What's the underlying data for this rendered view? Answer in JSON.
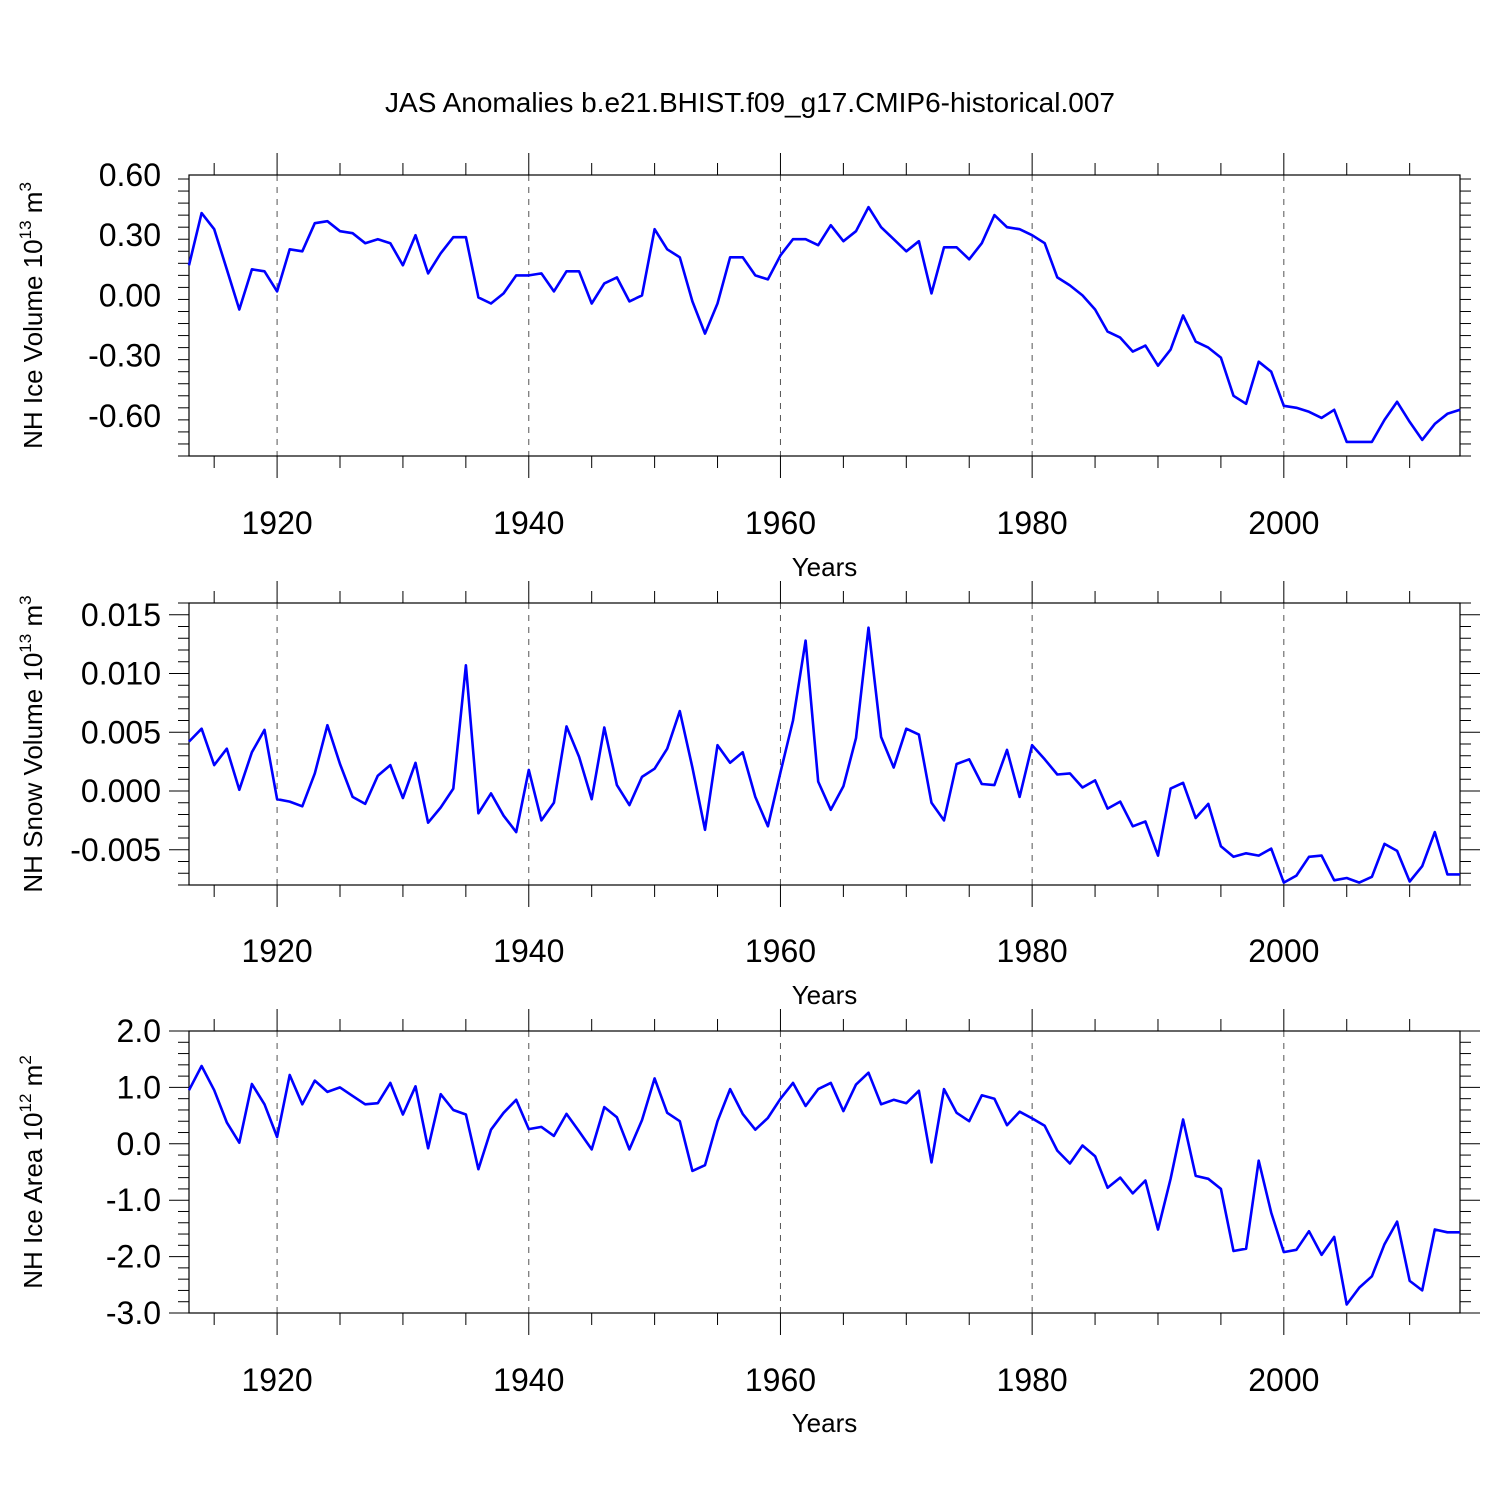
{
  "title": "JAS Anomalies b.e21.BHIST.f09_g17.CMIP6-historical.007",
  "colors": {
    "series": "#0000ff",
    "grid": "#555555"
  },
  "chart_data": [
    {
      "type": "line",
      "ylabel": {
        "base": "NH Ice Volume 10",
        "exp": "13",
        "unit": " m",
        "unit_exp": "3"
      },
      "xlabel": "Years",
      "xlim": [
        1913,
        2014
      ],
      "ylim": [
        -0.8,
        0.6
      ],
      "yticks": [
        0.6,
        0.3,
        0.0,
        -0.3,
        -0.6
      ],
      "ytick_labels": [
        "0.60",
        "0.30",
        "0.00",
        "-0.30",
        "-0.60"
      ],
      "xticks": [
        1920,
        1940,
        1960,
        1980,
        2000
      ],
      "xtick_labels": [
        "1920",
        "1940",
        "1960",
        "1980",
        "2000"
      ],
      "grid": "dashed vertical at major x ticks",
      "series": [
        {
          "x": [
            1913,
            1914,
            1915,
            1916,
            1917,
            1918,
            1919,
            1920,
            1921,
            1922,
            1923,
            1924,
            1925,
            1926,
            1927,
            1928,
            1929,
            1930,
            1931,
            1932,
            1933,
            1934,
            1935,
            1936,
            1937,
            1938,
            1939,
            1940,
            1941,
            1942,
            1943,
            1944,
            1945,
            1946,
            1947,
            1948,
            1949,
            1950,
            1951,
            1952,
            1953,
            1954,
            1955,
            1956,
            1957,
            1958,
            1959,
            1960,
            1961,
            1962,
            1963,
            1964,
            1965,
            1966,
            1967,
            1968,
            1969,
            1970,
            1971,
            1972,
            1973,
            1974,
            1975,
            1976,
            1977,
            1978,
            1979,
            1980,
            1981,
            1982,
            1983,
            1984,
            1985,
            1986,
            1987,
            1988,
            1989,
            1990,
            1991,
            1992,
            1993,
            1994,
            1995,
            1996,
            1997,
            1998,
            1999,
            2000,
            2001,
            2002,
            2003,
            2004,
            2005,
            2006,
            2007,
            2008,
            2009,
            2010,
            2011,
            2012,
            2013,
            2014
          ],
          "values": [
            0.15,
            0.41,
            0.33,
            0.13,
            -0.07,
            0.13,
            0.12,
            0.02,
            0.23,
            0.22,
            0.36,
            0.37,
            0.32,
            0.31,
            0.26,
            0.28,
            0.26,
            0.15,
            0.3,
            0.11,
            0.21,
            0.29,
            0.29,
            -0.01,
            -0.04,
            0.01,
            0.1,
            0.1,
            0.11,
            0.02,
            0.12,
            0.12,
            -0.04,
            0.06,
            0.09,
            -0.03,
            0.0,
            0.33,
            0.23,
            0.19,
            -0.03,
            -0.19,
            -0.04,
            0.19,
            0.19,
            0.1,
            0.08,
            0.2,
            0.28,
            0.28,
            0.25,
            0.35,
            0.27,
            0.32,
            0.44,
            0.34,
            0.28,
            0.22,
            0.27,
            0.01,
            0.24,
            0.24,
            0.18,
            0.26,
            0.4,
            0.34,
            0.33,
            0.3,
            0.26,
            0.09,
            0.05,
            0.0,
            -0.07,
            -0.18,
            -0.21,
            -0.28,
            -0.25,
            -0.35,
            -0.27,
            -0.1,
            -0.23,
            -0.26,
            -0.31,
            -0.5,
            -0.54,
            -0.33,
            -0.38,
            -0.55,
            -0.56,
            -0.58,
            -0.61,
            -0.57,
            -0.73,
            -0.73,
            -0.73,
            -0.62,
            -0.53,
            -0.63,
            -0.72,
            -0.64,
            -0.59,
            -0.57
          ]
        }
      ]
    },
    {
      "type": "line",
      "ylabel": {
        "base": "NH Snow Volume 10",
        "exp": "13",
        "unit": " m",
        "unit_exp": "3"
      },
      "xlabel": "Years",
      "xlim": [
        1913,
        2014
      ],
      "ylim": [
        -0.008,
        0.016
      ],
      "yticks": [
        0.015,
        0.01,
        0.005,
        0.0,
        -0.005
      ],
      "ytick_labels": [
        "0.015",
        "0.010",
        "0.005",
        "0.000",
        "-0.005"
      ],
      "xticks": [
        1920,
        1940,
        1960,
        1980,
        2000
      ],
      "xtick_labels": [
        "1920",
        "1940",
        "1960",
        "1980",
        "2000"
      ],
      "grid": "dashed vertical at major x ticks",
      "series": [
        {
          "x": [
            1913,
            1914,
            1915,
            1916,
            1917,
            1918,
            1919,
            1920,
            1921,
            1922,
            1923,
            1924,
            1925,
            1926,
            1927,
            1928,
            1929,
            1930,
            1931,
            1932,
            1933,
            1934,
            1935,
            1936,
            1937,
            1938,
            1939,
            1940,
            1941,
            1942,
            1943,
            1944,
            1945,
            1946,
            1947,
            1948,
            1949,
            1950,
            1951,
            1952,
            1953,
            1954,
            1955,
            1956,
            1957,
            1958,
            1959,
            1960,
            1961,
            1962,
            1963,
            1964,
            1965,
            1966,
            1967,
            1968,
            1969,
            1970,
            1971,
            1972,
            1973,
            1974,
            1975,
            1976,
            1977,
            1978,
            1979,
            1980,
            1981,
            1982,
            1983,
            1984,
            1985,
            1986,
            1987,
            1988,
            1989,
            1990,
            1991,
            1992,
            1993,
            1994,
            1995,
            1996,
            1997,
            1998,
            1999,
            2000,
            2001,
            2002,
            2003,
            2004,
            2005,
            2006,
            2007,
            2008,
            2009,
            2010,
            2011,
            2012,
            2013,
            2014
          ],
          "values": [
            0.0042,
            0.0053,
            0.0022,
            0.0036,
            0.0001,
            0.0033,
            0.0052,
            -0.0007,
            -0.0009,
            -0.0013,
            0.0015,
            0.0056,
            0.0023,
            -0.0005,
            -0.0011,
            0.0013,
            0.0022,
            -0.0006,
            0.0024,
            -0.0027,
            -0.0014,
            0.0002,
            0.0107,
            -0.0019,
            -0.0002,
            -0.0021,
            -0.0035,
            0.0018,
            -0.0025,
            -0.001,
            0.0055,
            0.0029,
            -0.0007,
            0.0054,
            0.0005,
            -0.0012,
            0.0012,
            0.0019,
            0.0036,
            0.0068,
            0.002,
            -0.0033,
            0.0039,
            0.0024,
            0.0033,
            -0.0005,
            -0.003,
            0.0016,
            0.006,
            0.0128,
            0.0008,
            -0.0016,
            0.0004,
            0.0045,
            0.0139,
            0.0046,
            0.002,
            0.0053,
            0.0048,
            -0.001,
            -0.0025,
            0.0023,
            0.0027,
            0.0006,
            0.0005,
            0.0035,
            -0.0005,
            0.0039,
            0.0027,
            0.0014,
            0.0015,
            0.0003,
            0.0009,
            -0.0015,
            -0.0009,
            -0.003,
            -0.0026,
            -0.0055,
            0.0002,
            0.0007,
            -0.0023,
            -0.0011,
            -0.0047,
            -0.0056,
            -0.0053,
            -0.0055,
            -0.0049,
            -0.0078,
            -0.0072,
            -0.0056,
            -0.0055,
            -0.0076,
            -0.0074,
            -0.0078,
            -0.0073,
            -0.0045,
            -0.0051,
            -0.0077,
            -0.0064,
            -0.0035,
            -0.0071,
            -0.0071
          ]
        }
      ]
    },
    {
      "type": "line",
      "ylabel": {
        "base": "NH Ice Area 10",
        "exp": "12",
        "unit": " m",
        "unit_exp": "2"
      },
      "xlabel": "Years",
      "xlim": [
        1913,
        2014
      ],
      "ylim": [
        -3.0,
        2.0
      ],
      "yticks": [
        2.0,
        1.0,
        0.0,
        -1.0,
        -2.0,
        -3.0
      ],
      "ytick_labels": [
        "2.0",
        "1.0",
        "0.0",
        "-1.0",
        "-2.0",
        "-3.0"
      ],
      "xticks": [
        1920,
        1940,
        1960,
        1980,
        2000
      ],
      "xtick_labels": [
        "1920",
        "1940",
        "1960",
        "1980",
        "2000"
      ],
      "grid": "dashed vertical at major x ticks",
      "series": [
        {
          "x": [
            1913,
            1914,
            1915,
            1916,
            1917,
            1918,
            1919,
            1920,
            1921,
            1922,
            1923,
            1924,
            1925,
            1926,
            1927,
            1928,
            1929,
            1930,
            1931,
            1932,
            1933,
            1934,
            1935,
            1936,
            1937,
            1938,
            1939,
            1940,
            1941,
            1942,
            1943,
            1944,
            1945,
            1946,
            1947,
            1948,
            1949,
            1950,
            1951,
            1952,
            1953,
            1954,
            1955,
            1956,
            1957,
            1958,
            1959,
            1960,
            1961,
            1962,
            1963,
            1964,
            1965,
            1966,
            1967,
            1968,
            1969,
            1970,
            1971,
            1972,
            1973,
            1974,
            1975,
            1976,
            1977,
            1978,
            1979,
            1980,
            1981,
            1982,
            1983,
            1984,
            1985,
            1986,
            1987,
            1988,
            1989,
            1990,
            1991,
            1992,
            1993,
            1994,
            1995,
            1996,
            1997,
            1998,
            1999,
            2000,
            2001,
            2002,
            2003,
            2004,
            2005,
            2006,
            2007,
            2008,
            2009,
            2010,
            2011,
            2012,
            2013,
            2014
          ],
          "values": [
            0.95,
            1.38,
            0.95,
            0.38,
            0.02,
            1.06,
            0.7,
            0.12,
            1.22,
            0.7,
            1.12,
            0.92,
            1.0,
            0.85,
            0.7,
            0.72,
            1.08,
            0.52,
            1.02,
            -0.08,
            0.88,
            0.6,
            0.52,
            -0.45,
            0.25,
            0.55,
            0.78,
            0.26,
            0.3,
            0.14,
            0.53,
            0.22,
            -0.1,
            0.65,
            0.47,
            -0.1,
            0.42,
            1.16,
            0.55,
            0.4,
            -0.48,
            -0.38,
            0.4,
            0.97,
            0.53,
            0.25,
            0.46,
            0.8,
            1.08,
            0.67,
            0.97,
            1.08,
            0.58,
            1.05,
            1.26,
            0.7,
            0.78,
            0.72,
            0.94,
            -0.33,
            0.97,
            0.55,
            0.4,
            0.86,
            0.8,
            0.33,
            0.57,
            0.45,
            0.32,
            -0.12,
            -0.35,
            -0.03,
            -0.22,
            -0.78,
            -0.6,
            -0.88,
            -0.65,
            -1.52,
            -0.62,
            0.43,
            -0.57,
            -0.62,
            -0.8,
            -1.9,
            -1.86,
            -0.3,
            -1.22,
            -1.92,
            -1.88,
            -1.55,
            -1.97,
            -1.65,
            -2.85,
            -2.55,
            -2.35,
            -1.78,
            -1.38,
            -2.43,
            -2.6,
            -1.52,
            -1.57,
            -1.57
          ]
        }
      ]
    }
  ]
}
